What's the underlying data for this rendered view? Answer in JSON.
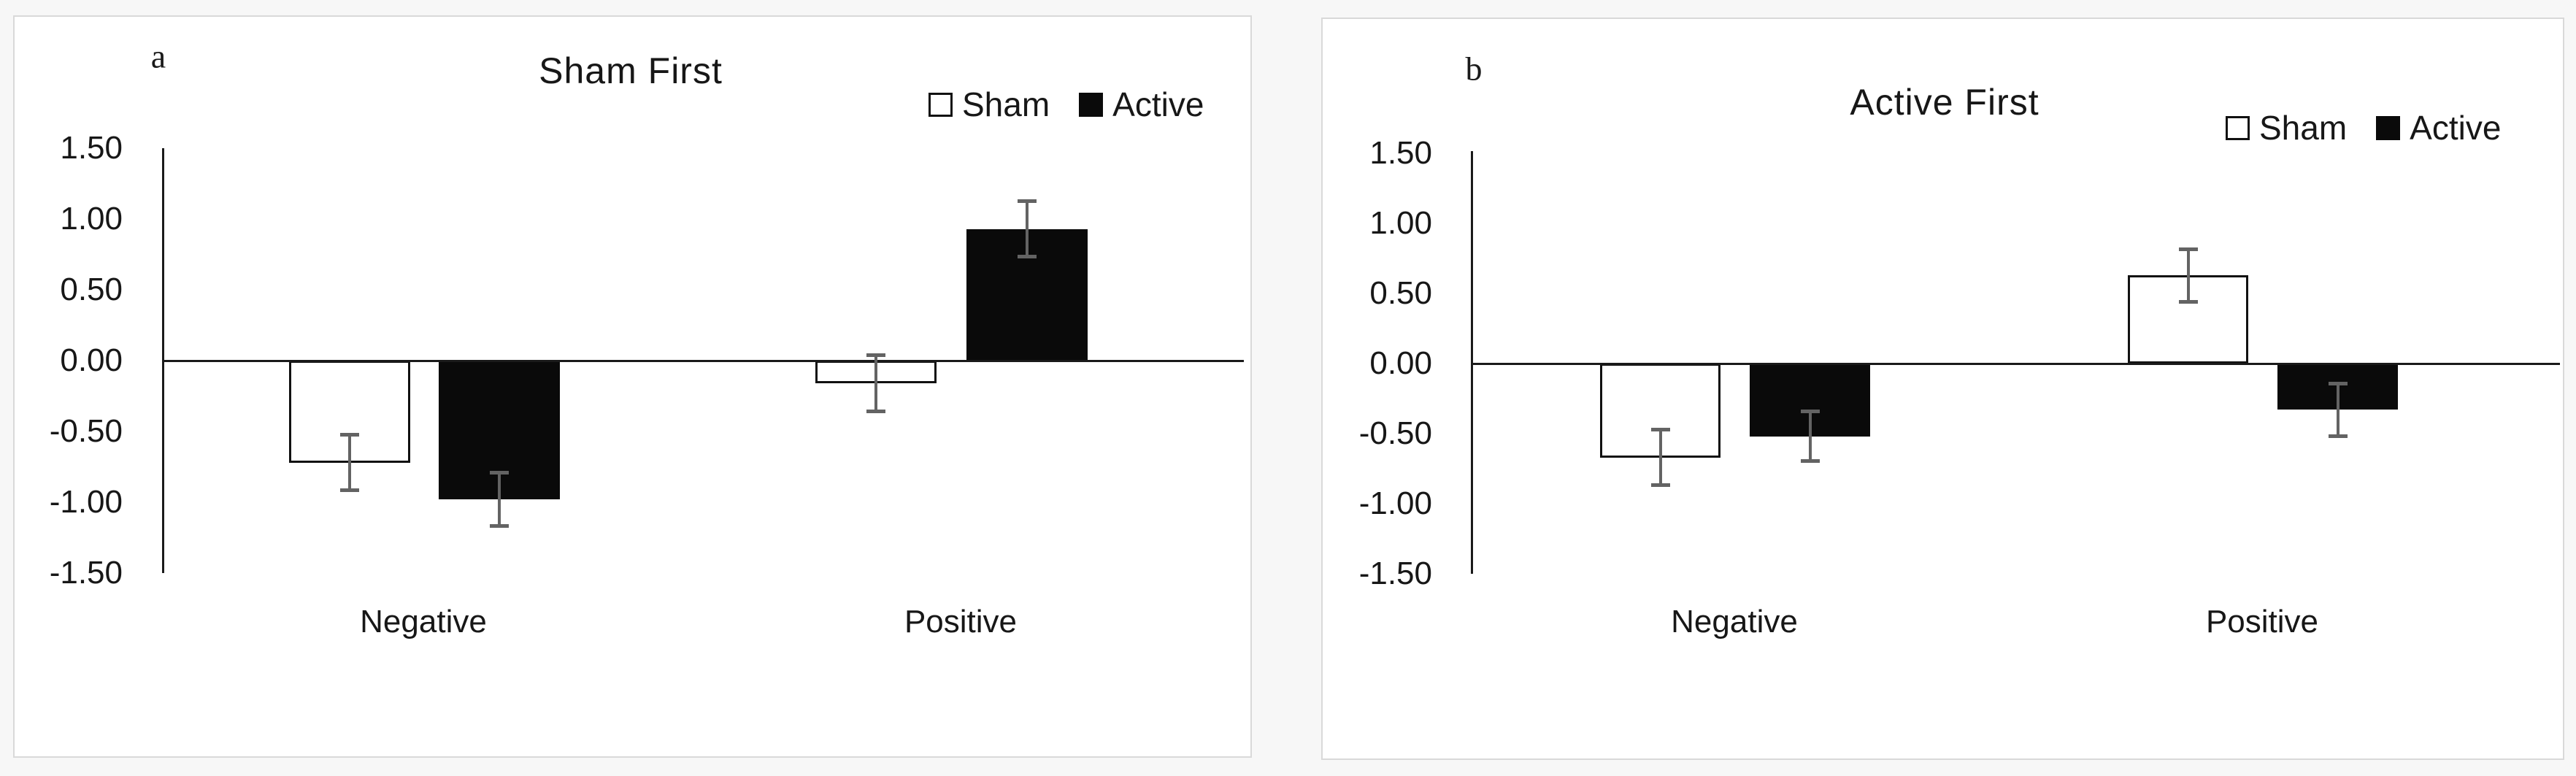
{
  "figure": {
    "description": "Two-panel bar chart figure comparing Sham vs Active stimulation for Negative and Positive conditions",
    "panel_count": 2
  },
  "styles": {
    "page_background": "#f7f7f7",
    "panel_background": "#ffffff",
    "panel_border": "#d9d9d9",
    "axis_color": "#1a1a1a",
    "error_bar_color": "#636363",
    "sham_fill": "#ffffff",
    "sham_border": "#111111",
    "active_fill": "#0a0a0a",
    "text_color": "#171717"
  },
  "chart_data": [
    {
      "type": "bar",
      "panel_letter": "a",
      "title": "Sham First",
      "categories": [
        "Negative",
        "Positive"
      ],
      "series": [
        {
          "name": "Sham",
          "values": [
            -0.72,
            -0.16
          ],
          "errors": [
            0.2,
            0.2
          ],
          "fill": "#ffffff",
          "border": "#111111"
        },
        {
          "name": "Active",
          "values": [
            -0.98,
            0.93
          ],
          "errors": [
            0.19,
            0.2
          ],
          "fill": "#0a0a0a",
          "border": "#0a0a0a"
        }
      ],
      "ylim": [
        -1.5,
        1.5
      ],
      "y_ticks": [
        1.5,
        1.0,
        0.5,
        0.0,
        -0.5,
        -1.0,
        -1.5
      ],
      "y_tick_labels": [
        "1.50",
        "1.00",
        "0.50",
        "0.00",
        "-0.50",
        "-1.00",
        "-1.50"
      ],
      "xlabel": "",
      "ylabel": "",
      "grid": false,
      "legend_position": "top-right",
      "error_bars": true
    },
    {
      "type": "bar",
      "panel_letter": "b",
      "title": "Active First",
      "categories": [
        "Negative",
        "Positive"
      ],
      "series": [
        {
          "name": "Sham",
          "values": [
            -0.67,
            0.63
          ],
          "errors": [
            0.2,
            0.19
          ],
          "fill": "#ffffff",
          "border": "#111111"
        },
        {
          "name": "Active",
          "values": [
            -0.52,
            -0.33
          ],
          "errors": [
            0.18,
            0.19
          ],
          "fill": "#0a0a0a",
          "border": "#0a0a0a"
        }
      ],
      "ylim": [
        -1.5,
        1.5
      ],
      "y_ticks": [
        1.5,
        1.0,
        0.5,
        0.0,
        -0.5,
        -1.0,
        -1.5
      ],
      "y_tick_labels": [
        "1.50",
        "1.00",
        "0.50",
        "0.00",
        "-0.50",
        "-1.00",
        "-1.50"
      ],
      "xlabel": "",
      "ylabel": "",
      "grid": false,
      "legend_position": "top-right",
      "error_bars": true
    }
  ]
}
